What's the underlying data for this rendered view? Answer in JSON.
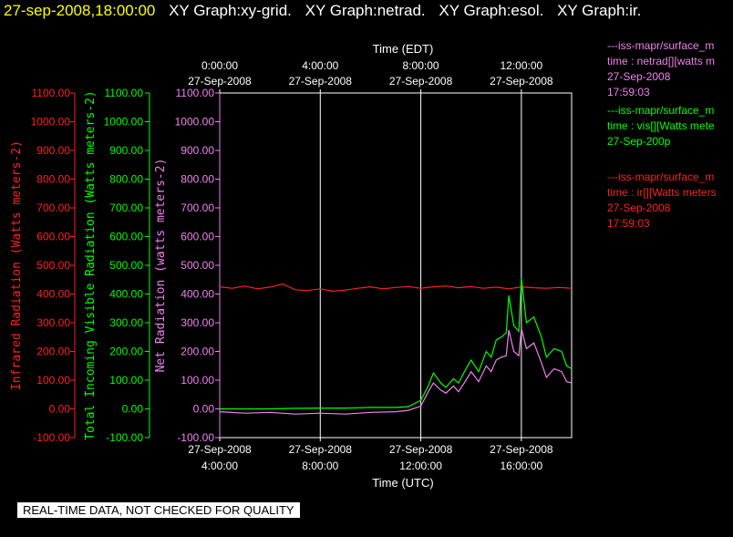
{
  "header": {
    "timestamp": "27-sep-2008,18:00:00",
    "graph_titles": [
      "XY Graph:xy-grid.",
      "XY Graph:netrad.",
      "XY Graph:esol.",
      "XY Graph:ir."
    ]
  },
  "banner": "REAL-TIME DATA, NOT CHECKED FOR QUALITY",
  "legend": [
    {
      "line1": "---iss-mapr/surface_m",
      "line2": "time : netrad[][watts m",
      "line3": "27-Sep-2008",
      "line4": "17:59:03",
      "color": "#ee82ee"
    },
    {
      "line1": "---iss-mapr/surface_m",
      "line2": "time : vis[][Watts mete",
      "line3": "27-Sep-200p",
      "line4": "",
      "color": "#00ff00"
    },
    {
      "line1": "---iss-mapr/surface_m",
      "line2": "time : ir[][Watts meters",
      "line3": "27-Sep-2008",
      "line4": "17:59:03",
      "color": "#ff2020"
    }
  ],
  "chart_data": {
    "type": "line",
    "xlabel_top": "Time (EDT)",
    "xlabel_bottom": "Time (UTC)",
    "x_unit": "hours (UTC)",
    "xlim": [
      4,
      18
    ],
    "xticks_top": [
      {
        "x": 4,
        "line1": "0:00:00",
        "line2": "27-Sep-2008"
      },
      {
        "x": 8,
        "line1": "4:00:00",
        "line2": "27-Sep-2008"
      },
      {
        "x": 12,
        "line1": "8:00:00",
        "line2": "27-Sep-2008"
      },
      {
        "x": 16,
        "line1": "12:00:00",
        "line2": "27-Sep-2008"
      }
    ],
    "xticks_bottom": [
      {
        "x": 4,
        "line1": "27-Sep-2008",
        "line2": "4:00:00"
      },
      {
        "x": 8,
        "line1": "27-Sep-2008",
        "line2": "8:00:00"
      },
      {
        "x": 12,
        "line1": "27-Sep-2008",
        "line2": "12:00:00"
      },
      {
        "x": 16,
        "line1": "27-Sep-2008",
        "line2": "16:00:00"
      }
    ],
    "ylim": [
      -100,
      1100
    ],
    "yticks": [
      "-100.00",
      "0.00",
      "100.00",
      "200.00",
      "300.00",
      "400.00",
      "500.00",
      "600.00",
      "700.00",
      "800.00",
      "900.00",
      "1000.00",
      "1100.00"
    ],
    "ytick_values": [
      -100,
      0,
      100,
      200,
      300,
      400,
      500,
      600,
      700,
      800,
      900,
      1000,
      1100
    ],
    "axes": [
      {
        "label": "Infrared Radiation (Watts meters-2)",
        "color": "#ff2020"
      },
      {
        "label": "Total Incoming Visible Radiation (Watts meters-2)",
        "color": "#00ff00"
      },
      {
        "label": "Net Radiation (watts meters-2)",
        "color": "#ee82ee"
      }
    ],
    "series": [
      {
        "name": "ir",
        "color": "#ff2020",
        "x": [
          4,
          4.5,
          5,
          5.5,
          6,
          6.5,
          7,
          7.5,
          8,
          8.5,
          9,
          9.5,
          10,
          10.5,
          11,
          11.5,
          12,
          12.5,
          13,
          13.5,
          14,
          14.5,
          15,
          15.5,
          16,
          16.5,
          17,
          17.5,
          18
        ],
        "y": [
          425,
          420,
          428,
          418,
          424,
          435,
          415,
          412,
          418,
          410,
          414,
          420,
          425,
          418,
          423,
          426,
          420,
          425,
          428,
          422,
          426,
          420,
          424,
          418,
          425,
          422,
          420,
          423,
          420
        ]
      },
      {
        "name": "vis",
        "color": "#00ff00",
        "x": [
          4,
          5,
          6,
          7,
          8,
          9,
          10,
          11,
          11.5,
          12,
          12.3,
          12.5,
          12.8,
          13,
          13.3,
          13.5,
          13.8,
          14,
          14.3,
          14.6,
          14.8,
          15,
          15.2,
          15.4,
          15.5,
          15.7,
          15.9,
          16,
          16.2,
          16.5,
          16.8,
          17,
          17.3,
          17.6,
          17.8,
          18
        ],
        "y": [
          0,
          0,
          0,
          2,
          3,
          3,
          5,
          5,
          8,
          30,
          80,
          125,
          90,
          75,
          105,
          90,
          140,
          170,
          130,
          200,
          180,
          240,
          250,
          265,
          395,
          290,
          270,
          455,
          300,
          320,
          250,
          180,
          210,
          200,
          150,
          140
        ]
      },
      {
        "name": "netrad",
        "color": "#ee82ee",
        "x": [
          4,
          5,
          6,
          7,
          8,
          9,
          10,
          11,
          11.5,
          12,
          12.3,
          12.5,
          12.8,
          13,
          13.3,
          13.5,
          13.8,
          14,
          14.3,
          14.6,
          14.8,
          15,
          15.2,
          15.4,
          15.5,
          15.7,
          15.9,
          16,
          16.2,
          16.5,
          16.8,
          17,
          17.3,
          17.6,
          17.8,
          18
        ],
        "y": [
          -10,
          -15,
          -12,
          -18,
          -15,
          -18,
          -12,
          -10,
          -5,
          10,
          60,
          90,
          65,
          55,
          80,
          60,
          100,
          130,
          95,
          150,
          130,
          170,
          180,
          185,
          275,
          200,
          185,
          280,
          210,
          230,
          160,
          110,
          140,
          130,
          95,
          90
        ]
      }
    ]
  }
}
